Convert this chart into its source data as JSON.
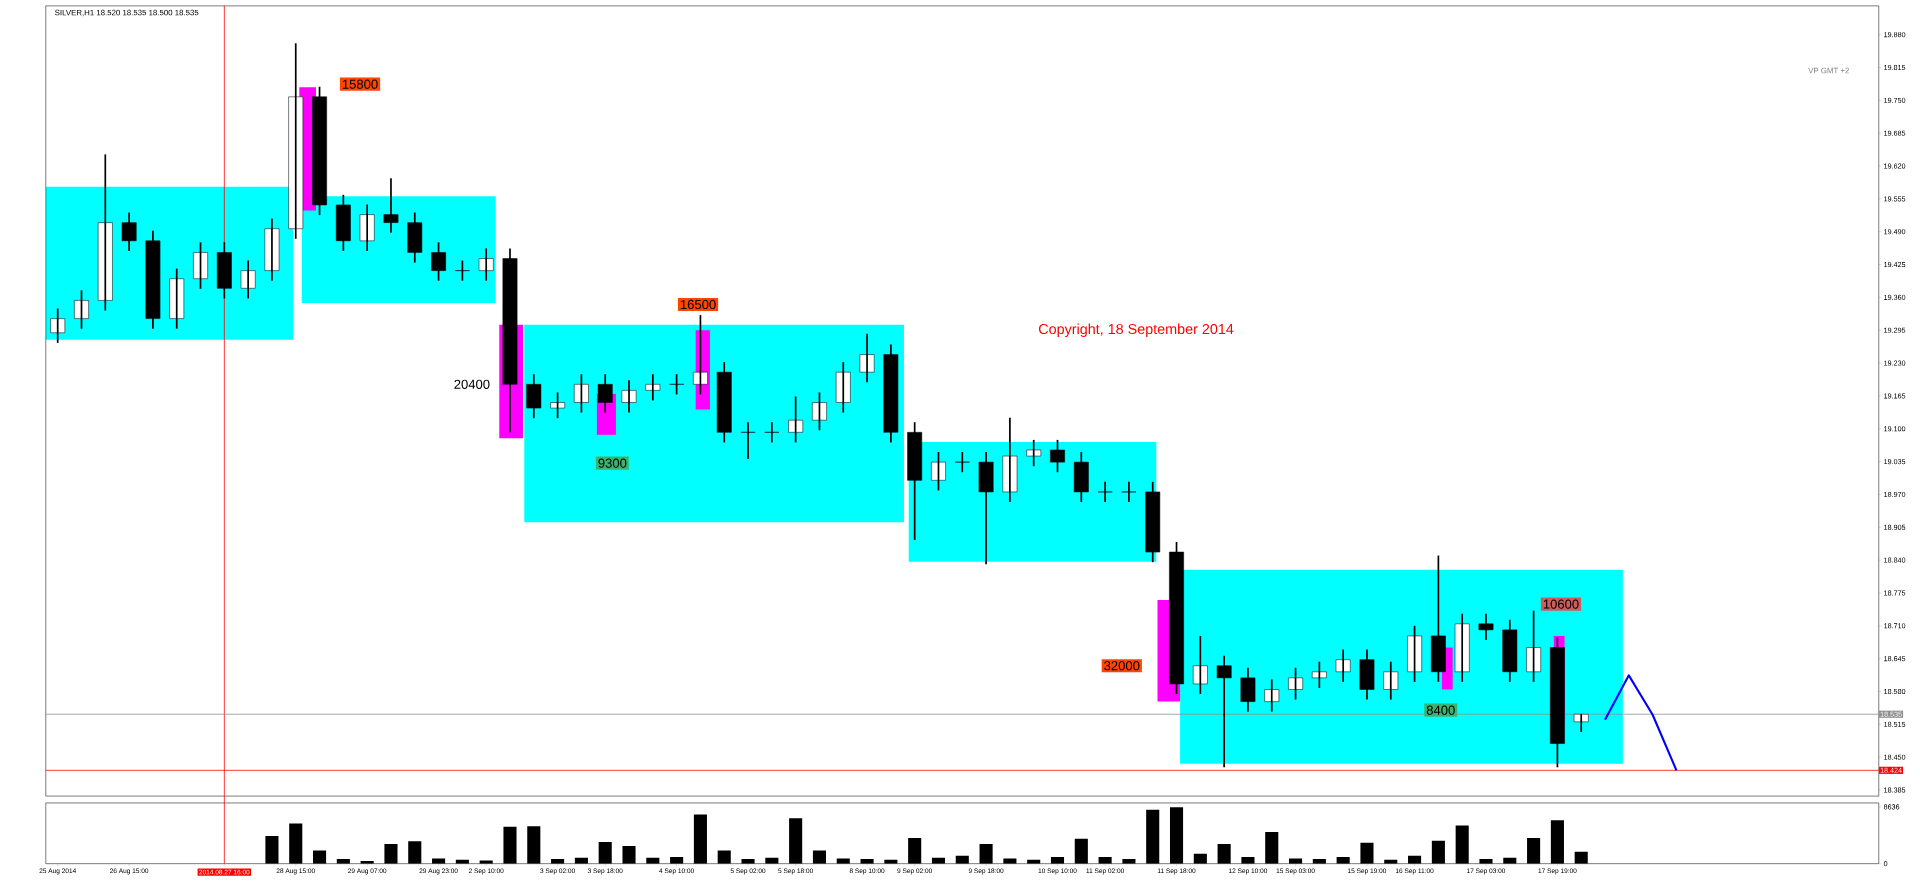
{
  "chart_data": [
    {
      "type": "candlestick",
      "title": "SILVER,H1 18.520 18.535 18.500 18.535",
      "categories": [
        "25 Aug 2014",
        null,
        null,
        "26 Aug 15:00",
        null,
        null,
        null,
        "2014.08.27 16:00",
        null,
        null,
        "28 Aug 15:00",
        null,
        null,
        "29 Aug 07:00",
        null,
        null,
        "29 Aug 23:00",
        null,
        "2 Sep 10:00",
        null,
        null,
        "3 Sep 02:00",
        null,
        "3 Sep 18:00",
        null,
        null,
        "4 Sep 10:00",
        null,
        null,
        "5 Sep 02:00",
        null,
        "5 Sep 18:00",
        null,
        null,
        "8 Sep 10:00",
        null,
        "9 Sep 02:00",
        null,
        null,
        "9 Sep 18:00",
        null,
        null,
        "10 Sep 10:00",
        null,
        "11 Sep 02:00",
        null,
        null,
        "11 Sep 18:00",
        null,
        null,
        "12 Sep 10:00",
        null,
        "15 Sep 03:00",
        null,
        null,
        "15 Sep 19:00",
        null,
        "16 Sep 11:00",
        null,
        null,
        "17 Sep 03:00",
        null,
        null,
        "17 Sep 19:00",
        null,
        null,
        null,
        null,
        null,
        null,
        null,
        null,
        null,
        null,
        null,
        null,
        null
      ],
      "ohlc": [
        [
          19.29,
          19.338,
          19.27,
          19.318
        ],
        [
          19.318,
          19.374,
          19.298,
          19.354
        ],
        [
          19.354,
          19.643,
          19.334,
          19.508
        ],
        [
          19.508,
          19.528,
          19.452,
          19.472
        ],
        [
          19.472,
          19.492,
          19.298,
          19.318
        ],
        [
          19.318,
          19.417,
          19.298,
          19.397
        ],
        [
          19.397,
          19.469,
          19.377,
          19.449
        ],
        [
          19.449,
          19.469,
          19.358,
          19.378
        ],
        [
          19.378,
          19.433,
          19.358,
          19.413
        ],
        [
          19.413,
          19.516,
          19.393,
          19.496
        ],
        [
          19.496,
          19.863,
          19.476,
          19.757
        ],
        [
          19.757,
          19.777,
          19.523,
          19.543
        ],
        [
          19.543,
          19.563,
          19.452,
          19.472
        ],
        [
          19.472,
          19.544,
          19.452,
          19.524
        ],
        [
          19.524,
          19.596,
          19.488,
          19.508
        ],
        [
          19.508,
          19.528,
          19.429,
          19.449
        ],
        [
          19.449,
          19.469,
          19.393,
          19.413
        ],
        [
          19.413,
          19.433,
          19.393,
          19.413
        ],
        [
          19.413,
          19.457,
          19.393,
          19.437
        ],
        [
          19.437,
          19.457,
          19.093,
          19.188
        ],
        [
          19.188,
          19.208,
          19.121,
          19.141
        ],
        [
          19.141,
          19.172,
          19.121,
          19.152
        ],
        [
          19.152,
          19.208,
          19.132,
          19.188
        ],
        [
          19.188,
          19.208,
          19.132,
          19.152
        ],
        [
          19.152,
          19.196,
          19.132,
          19.176
        ],
        [
          19.176,
          19.208,
          19.156,
          19.188
        ],
        [
          19.188,
          19.208,
          19.168,
          19.188
        ],
        [
          19.188,
          19.325,
          19.168,
          19.212
        ],
        [
          19.212,
          19.232,
          19.073,
          19.093
        ],
        [
          19.093,
          19.113,
          19.04,
          19.093
        ],
        [
          19.093,
          19.113,
          19.073,
          19.093
        ],
        [
          19.093,
          19.164,
          19.073,
          19.117
        ],
        [
          19.117,
          19.172,
          19.097,
          19.152
        ],
        [
          19.152,
          19.232,
          19.132,
          19.212
        ],
        [
          19.212,
          19.288,
          19.192,
          19.247
        ],
        [
          19.247,
          19.267,
          19.073,
          19.093
        ],
        [
          19.093,
          19.113,
          18.88,
          18.998
        ],
        [
          18.998,
          19.054,
          18.978,
          19.034
        ],
        [
          19.034,
          19.054,
          19.014,
          19.034
        ],
        [
          19.034,
          19.054,
          18.832,
          18.975
        ],
        [
          18.975,
          19.122,
          18.955,
          19.046
        ],
        [
          19.046,
          19.078,
          19.026,
          19.058
        ],
        [
          19.058,
          19.078,
          19.014,
          19.034
        ],
        [
          19.034,
          19.054,
          18.955,
          18.975
        ],
        [
          18.975,
          18.995,
          18.955,
          18.975
        ],
        [
          18.975,
          18.995,
          18.955,
          18.975
        ],
        [
          18.975,
          18.995,
          18.836,
          18.856
        ],
        [
          18.856,
          18.876,
          18.575,
          18.595
        ],
        [
          18.595,
          18.69,
          18.575,
          18.631
        ],
        [
          18.631,
          18.651,
          18.43,
          18.607
        ],
        [
          18.607,
          18.627,
          18.54,
          18.56
        ],
        [
          18.56,
          18.604,
          18.54,
          18.584
        ],
        [
          18.584,
          18.627,
          18.564,
          18.607
        ],
        [
          18.607,
          18.639,
          18.587,
          18.619
        ],
        [
          18.619,
          18.663,
          18.599,
          18.643
        ],
        [
          18.643,
          18.663,
          18.564,
          18.584
        ],
        [
          18.584,
          18.639,
          18.564,
          18.619
        ],
        [
          18.619,
          18.71,
          18.599,
          18.69
        ],
        [
          18.69,
          18.849,
          18.599,
          18.619
        ],
        [
          18.619,
          18.734,
          18.599,
          18.714
        ],
        [
          18.714,
          18.734,
          18.682,
          18.702
        ],
        [
          18.702,
          18.722,
          18.599,
          18.619
        ],
        [
          18.619,
          18.74,
          18.599,
          18.667
        ],
        [
          18.667,
          18.687,
          18.43,
          18.477
        ],
        [
          18.52,
          18.535,
          18.5,
          18.535
        ],
        null,
        null,
        null,
        null,
        null,
        null,
        null,
        null,
        null,
        null,
        null,
        null
      ],
      "series": [
        {
          "type": "line",
          "color": "#0000ff",
          "values": [
            null,
            null,
            null,
            null,
            null,
            null,
            null,
            null,
            null,
            null,
            null,
            null,
            null,
            null,
            null,
            null,
            null,
            null,
            null,
            null,
            null,
            null,
            null,
            null,
            null,
            null,
            null,
            null,
            null,
            null,
            null,
            null,
            null,
            null,
            null,
            null,
            null,
            null,
            null,
            null,
            null,
            null,
            null,
            null,
            null,
            null,
            null,
            null,
            null,
            null,
            null,
            null,
            null,
            null,
            null,
            null,
            null,
            null,
            null,
            null,
            null,
            null,
            null,
            null,
            null,
            18.524,
            18.612,
            18.534,
            18.424,
            null,
            null,
            null,
            null,
            null,
            null,
            null,
            null
          ]
        }
      ],
      "ylim": [
        18.373,
        19.937
      ],
      "yticks": [
        {
          "value": 18.385,
          "label": "18.385"
        },
        {
          "value": 18.45,
          "label": "18.450"
        },
        {
          "value": 18.515,
          "label": "18.515"
        },
        {
          "value": 18.58,
          "label": "18.580"
        },
        {
          "value": 18.645,
          "label": "18.645"
        },
        {
          "value": 18.71,
          "label": "18.710"
        },
        {
          "value": 18.775,
          "label": "18.775"
        },
        {
          "value": 18.84,
          "label": "18.840"
        },
        {
          "value": 18.905,
          "label": "18.905"
        },
        {
          "value": 18.97,
          "label": "18.970"
        },
        {
          "value": 19.035,
          "label": "19.035"
        },
        {
          "value": 19.1,
          "label": "19.100"
        },
        {
          "value": 19.165,
          "label": "19.165"
        },
        {
          "value": 19.23,
          "label": "19.230"
        },
        {
          "value": 19.295,
          "label": "19.295"
        },
        {
          "value": 19.36,
          "label": "19.360"
        },
        {
          "value": 19.425,
          "label": "19.425"
        },
        {
          "value": 19.49,
          "label": "19.490"
        },
        {
          "value": 19.555,
          "label": "19.555"
        },
        {
          "value": 19.62,
          "label": "19.620"
        },
        {
          "value": 19.685,
          "label": "19.685"
        },
        {
          "value": 19.75,
          "label": "19.750"
        },
        {
          "value": 19.815,
          "label": "19.815"
        },
        {
          "value": 19.88,
          "label": "19.880"
        }
      ],
      "tick_labels": "y",
      "ref_lines": [
        {
          "axis": "x",
          "value": "2014.08.27 16:00",
          "color": "#ff0000"
        },
        {
          "axis": "y",
          "value": 18.535,
          "label": "18.535",
          "color": "#909090"
        },
        {
          "axis": "y",
          "value": 18.424,
          "label": "18.424",
          "color": "#ff0000"
        }
      ],
      "annotations": [
        "15800",
        "16500",
        "20400",
        "9300",
        "32000",
        "10600",
        "8400",
        "Copyright, 18 September 2014",
        "VP GMT +2"
      ]
    },
    {
      "type": "bar",
      "categories": [
        "25 Aug 2014",
        null,
        null,
        "26 Aug 15:00",
        null,
        null,
        null,
        "2014.08.27 16:00",
        null,
        null,
        "28 Aug 15:00",
        null,
        null,
        "29 Aug 07:00",
        null,
        null,
        "29 Aug 23:00",
        null,
        "2 Sep 10:00",
        null,
        null,
        "3 Sep 02:00",
        null,
        "3 Sep 18:00",
        null,
        null,
        "4 Sep 10:00",
        null,
        null,
        "5 Sep 02:00",
        null,
        "5 Sep 18:00",
        null,
        null,
        "8 Sep 10:00",
        null,
        "9 Sep 02:00",
        null,
        null,
        "9 Sep 18:00",
        null,
        null,
        "10 Sep 10:00",
        null,
        "11 Sep 02:00",
        null,
        null,
        "11 Sep 18:00",
        null,
        null,
        "12 Sep 10:00",
        null,
        "15 Sep 03:00",
        null,
        null,
        "15 Sep 19:00",
        null,
        "16 Sep 11:00",
        null,
        null,
        "17 Sep 03:00",
        null,
        null,
        "17 Sep 19:00",
        null,
        null,
        null,
        null,
        null,
        null,
        null,
        null,
        null,
        null,
        null,
        null,
        null
      ],
      "values": [
        null,
        null,
        null,
        null,
        null,
        null,
        null,
        null,
        null,
        4200,
        6100,
        2000,
        700,
        400,
        3000,
        3400,
        800,
        600,
        500,
        5600,
        5700,
        700,
        900,
        3300,
        2700,
        900,
        1000,
        7500,
        2000,
        700,
        900,
        6900,
        2000,
        800,
        700,
        600,
        3900,
        900,
        1200,
        3000,
        800,
        600,
        1000,
        3800,
        1000,
        700,
        8200,
        8600,
        1500,
        3000,
        1000,
        4800,
        800,
        700,
        1000,
        3200,
        600,
        1200,
        3500,
        5800,
        700,
        900,
        3900,
        6600,
        1800,
        null,
        null,
        null,
        null,
        null,
        null,
        null,
        null,
        null,
        null,
        null,
        null
      ],
      "color": "#000000",
      "ylim": [
        0,
        9240
      ],
      "yticks": [
        0,
        8636
      ]
    }
  ]
}
